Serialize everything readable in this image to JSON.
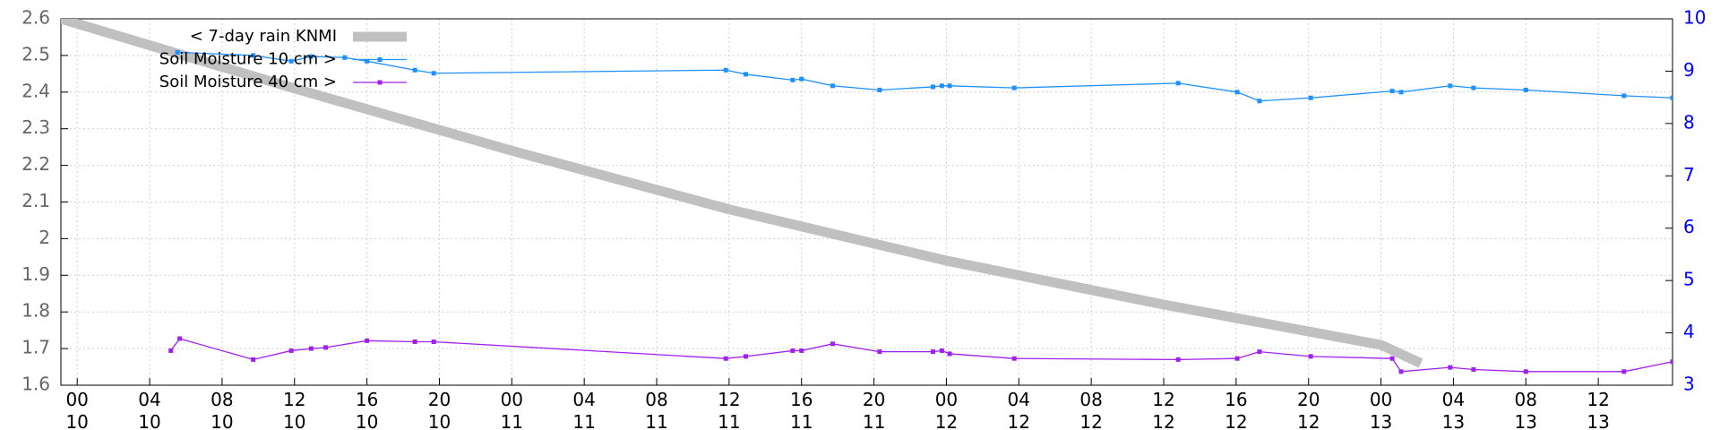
{
  "chart_data": {
    "type": "line",
    "xlim": [
      -0.9,
      88.1
    ],
    "xticks": [
      {
        "value": 0,
        "label": "00 10"
      },
      {
        "value": 4,
        "label": "04 10"
      },
      {
        "value": 8,
        "label": "08 10"
      },
      {
        "value": 12,
        "label": "12 10"
      },
      {
        "value": 16,
        "label": "16 10"
      },
      {
        "value": 20,
        "label": "20 10"
      },
      {
        "value": 24,
        "label": "00 11"
      },
      {
        "value": 28,
        "label": "04 11"
      },
      {
        "value": 32,
        "label": "08 11"
      },
      {
        "value": 36,
        "label": "12 11"
      },
      {
        "value": 40,
        "label": "16 11"
      },
      {
        "value": 44,
        "label": "20 11"
      },
      {
        "value": 48,
        "label": "00 12"
      },
      {
        "value": 52,
        "label": "04 12"
      },
      {
        "value": 56,
        "label": "08 12"
      },
      {
        "value": 60,
        "label": "12 12"
      },
      {
        "value": 64,
        "label": "16 12"
      },
      {
        "value": 68,
        "label": "20 12"
      },
      {
        "value": 72,
        "label": "00 13"
      },
      {
        "value": 76,
        "label": "04 13"
      },
      {
        "value": 80,
        "label": "08 13"
      },
      {
        "value": 84,
        "label": "12 13"
      }
    ],
    "ylim": [
      1.6,
      2.6
    ],
    "yticks": [
      1.6,
      1.7,
      1.8,
      1.9,
      2,
      2.1,
      2.2,
      2.3,
      2.4,
      2.5,
      2.6
    ],
    "y2lim": [
      3,
      10
    ],
    "y2ticks": [
      3,
      4,
      5,
      6,
      7,
      8,
      9,
      10
    ],
    "ytick_color": "#666666",
    "y2tick_color": "#0000ff",
    "grid": true,
    "legend": "top-left",
    "series": [
      {
        "name": "< 7-day rain KNMI",
        "color": "#c0c0c0",
        "axis": "y",
        "linewidth": 11,
        "markers": false,
        "x": [
          -0.9,
          12,
          24,
          36,
          48,
          60,
          72,
          74.2
        ],
        "values": [
          2.6,
          2.41,
          2.24,
          2.08,
          1.94,
          1.82,
          1.71,
          1.66
        ]
      },
      {
        "name": "Soil Moisture 10 cm >",
        "color": "#1e90ff",
        "axis": "y2",
        "linewidth": 1.3,
        "markers": true,
        "x": [
          5.54,
          9.72,
          11.82,
          12.92,
          14.77,
          16.0,
          18.65,
          19.69,
          35.82,
          36.92,
          39.51,
          40.0,
          41.72,
          44.31,
          47.26,
          47.75,
          48.18,
          51.75,
          60.8,
          64.06,
          65.29,
          68.12,
          72.62,
          73.11,
          75.82,
          77.11,
          80.0,
          85.42,
          88.1
        ],
        "values": [
          9.36,
          9.3,
          9.19,
          9.28,
          9.26,
          9.19,
          9.02,
          8.96,
          9.02,
          8.94,
          8.83,
          8.85,
          8.72,
          8.64,
          8.7,
          8.72,
          8.72,
          8.68,
          8.77,
          8.6,
          8.43,
          8.49,
          8.62,
          8.6,
          8.72,
          8.68,
          8.64,
          8.53,
          8.49
        ]
      },
      {
        "name": "Soil Moisture 40 cm >",
        "color": "#a020f0",
        "axis": "y2",
        "linewidth": 1.3,
        "markers": true,
        "x": [
          5.17,
          5.66,
          9.72,
          11.82,
          12.92,
          13.72,
          16.0,
          18.65,
          19.69,
          35.82,
          36.92,
          39.51,
          40.0,
          41.72,
          44.31,
          47.26,
          47.75,
          48.18,
          51.75,
          60.8,
          64.06,
          65.29,
          68.12,
          72.62,
          73.11,
          75.82,
          77.11,
          80.0,
          85.42,
          88.1
        ],
        "values": [
          3.66,
          3.89,
          3.49,
          3.66,
          3.7,
          3.72,
          3.85,
          3.83,
          3.83,
          3.51,
          3.55,
          3.66,
          3.66,
          3.79,
          3.64,
          3.64,
          3.66,
          3.6,
          3.51,
          3.49,
          3.51,
          3.64,
          3.55,
          3.51,
          3.26,
          3.34,
          3.3,
          3.26,
          3.26,
          3.45
        ]
      }
    ]
  }
}
